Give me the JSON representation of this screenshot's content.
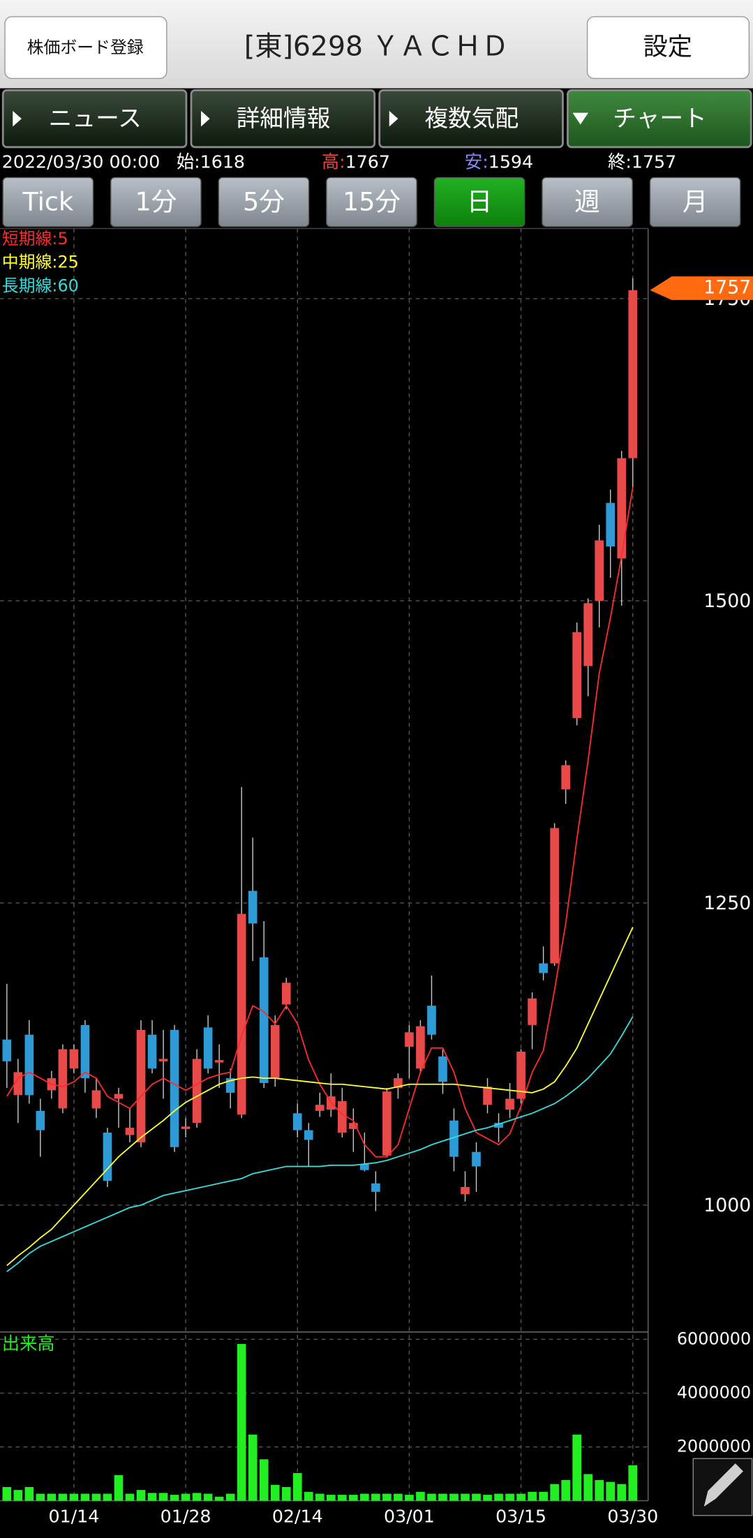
{
  "header": {
    "register_button": "株価ボード登録",
    "title": "[東]6298 ＹＡＣＨＤ",
    "settings_button": "設定"
  },
  "tabs": [
    "ニュース",
    "詳細情報",
    "複数気配",
    "チャート"
  ],
  "active_tab": 3,
  "info": {
    "datetime": "2022/03/30 00:00",
    "open_label": "始:",
    "high_label": "高:",
    "low_label": "安:",
    "close_label": "終:"
  },
  "periods": [
    "Tick",
    "1分",
    "5分",
    "15分",
    "日",
    "週",
    "月"
  ],
  "active_period": 4,
  "chart_data": {
    "type": "candlestick",
    "categories": [
      null,
      null,
      null,
      null,
      null,
      null,
      "01/14",
      null,
      null,
      null,
      null,
      null,
      null,
      null,
      null,
      null,
      "01/28",
      null,
      null,
      null,
      null,
      null,
      null,
      null,
      null,
      null,
      "02/14",
      null,
      null,
      null,
      null,
      null,
      null,
      null,
      null,
      null,
      "03/01",
      null,
      null,
      null,
      null,
      null,
      null,
      null,
      null,
      null,
      "03/15",
      null,
      null,
      null,
      null,
      null,
      null,
      null,
      null,
      null,
      "03/30"
    ],
    "open": [
      1137,
      1091,
      1141,
      1078,
      1095,
      1080,
      1113,
      1149,
      1080,
      1060,
      1088,
      1058,
      1052,
      1141,
      1119,
      1145,
      1063,
      1068,
      1147,
      1118,
      1105,
      1075,
      1260,
      1205,
      1105,
      1166,
      1076,
      1062,
      1078,
      1079,
      1060,
      1063,
      1034,
      1018,
      1041,
      1097,
      1131,
      1113,
      1165,
      1123,
      1070,
      1009,
      1044,
      1083,
      1068,
      1079,
      1088,
      1149,
      1200,
      1200,
      1344,
      1403,
      1446,
      1500,
      1581,
      1535,
      1618
    ],
    "high": [
      1183,
      1121,
      1153,
      1088,
      1111,
      1133,
      1133,
      1153,
      1105,
      1064,
      1097,
      1080,
      1153,
      1153,
      1145,
      1149,
      1072,
      1129,
      1157,
      1133,
      1113,
      1346,
      1304,
      1235,
      1157,
      1188,
      1084,
      1068,
      1093,
      1109,
      1097,
      1080,
      1060,
      1028,
      1097,
      1109,
      1149,
      1153,
      1190,
      1129,
      1080,
      1028,
      1052,
      1105,
      1076,
      1101,
      1129,
      1176,
      1214,
      1316,
      1368,
      1482,
      1502,
      1563,
      1592,
      1624,
      1767
    ],
    "low": [
      1097,
      1068,
      1084,
      1040,
      1088,
      1076,
      1109,
      1093,
      1072,
      1015,
      1064,
      1052,
      1048,
      1109,
      1088,
      1044,
      1056,
      1064,
      1109,
      1097,
      1080,
      1072,
      1202,
      1097,
      1098,
      1162,
      1056,
      1032,
      1073,
      1073,
      1056,
      1044,
      1028,
      995,
      1040,
      1088,
      1105,
      1109,
      1137,
      1092,
      1028,
      1003,
      1011,
      1076,
      1052,
      1072,
      1084,
      1129,
      1186,
      1198,
      1332,
      1397,
      1421,
      1478,
      1519,
      1496,
      1594
    ],
    "close": [
      1119,
      1110,
      1091,
      1062,
      1105,
      1129,
      1129,
      1105,
      1095,
      1020,
      1092,
      1064,
      1145,
      1113,
      1121,
      1048,
      1065,
      1121,
      1113,
      1120,
      1093,
      1241,
      1233,
      1101,
      1149,
      1184,
      1062,
      1054,
      1083,
      1090,
      1086,
      1068,
      1029,
      1011,
      1094,
      1105,
      1143,
      1148,
      1141,
      1102,
      1040,
      1015,
      1032,
      1098,
      1064,
      1088,
      1127,
      1171,
      1192,
      1312,
      1364,
      1474,
      1498,
      1550,
      1545,
      1618,
      1757
    ],
    "up_color": "#e84a4a",
    "down_color": "#2e9bd6",
    "wick_color": "#c8c8c8",
    "ylim": [
      895,
      1808
    ],
    "yticks": [
      1000,
      1250,
      1500,
      1750
    ],
    "grid": true,
    "series": [
      {
        "name": "短期線:5",
        "color": "#ff2a2a",
        "values": [
          1090,
          1105,
          1110,
          1105,
          1100,
          1098,
          1102,
          1110,
          1105,
          1090,
          1085,
          1080,
          1090,
          1100,
          1105,
          1100,
          1095,
          1100,
          1105,
          1108,
          1110,
          1140,
          1165,
          1160,
          1150,
          1165,
          1150,
          1120,
          1100,
          1085,
          1075,
          1070,
          1050,
          1040,
          1040,
          1050,
          1080,
          1110,
          1130,
          1130,
          1110,
          1080,
          1060,
          1055,
          1050,
          1059,
          1082,
          1110,
          1128,
          1178,
          1233,
          1303,
          1368,
          1440,
          1486,
          1537,
          1594
        ]
      },
      {
        "name": "中期線:25",
        "color": "#ffff33",
        "values": [
          950,
          958,
          965,
          973,
          980,
          990,
          1000,
          1010,
          1020,
          1030,
          1040,
          1048,
          1056,
          1063,
          1070,
          1078,
          1085,
          1090,
          1095,
          1100,
          1103,
          1105,
          1106,
          1105,
          1105,
          1104,
          1103,
          1102,
          1101,
          1100,
          1100,
          1099,
          1098,
          1097,
          1096,
          1098,
          1100,
          1100,
          1100,
          1100,
          1100,
          1099,
          1098,
          1097,
          1096,
          1095,
          1094,
          1093,
          1096,
          1102,
          1115,
          1130,
          1150,
          1170,
          1190,
          1210,
          1230
        ]
      },
      {
        "name": "長期線:60",
        "color": "#33dddd",
        "values": [
          945,
          952,
          960,
          966,
          970,
          974,
          978,
          982,
          986,
          990,
          994,
          998,
          1000,
          1004,
          1008,
          1010,
          1012,
          1014,
          1016,
          1018,
          1020,
          1022,
          1026,
          1028,
          1030,
          1032,
          1032,
          1032,
          1032,
          1033,
          1033,
          1033,
          1034,
          1035,
          1037,
          1040,
          1043,
          1046,
          1050,
          1053,
          1056,
          1059,
          1062,
          1064,
          1067,
          1070,
          1073,
          1076,
          1080,
          1084,
          1090,
          1097,
          1105,
          1115,
          1125,
          1140,
          1156
        ]
      }
    ],
    "volume": {
      "name": "出来高",
      "color": "#22ee22",
      "ylim": [
        0,
        6200000
      ],
      "yticks": [
        2000000,
        4000000,
        6000000
      ],
      "values": [
        510000,
        400000,
        510000,
        260000,
        260000,
        260000,
        260000,
        260000,
        260000,
        260000,
        950000,
        260000,
        400000,
        290000,
        290000,
        220000,
        260000,
        290000,
        260000,
        150000,
        260000,
        5830000,
        2460000,
        1540000,
        590000,
        510000,
        1030000,
        330000,
        260000,
        220000,
        220000,
        220000,
        260000,
        260000,
        260000,
        260000,
        220000,
        330000,
        260000,
        260000,
        260000,
        260000,
        260000,
        220000,
        260000,
        260000,
        260000,
        330000,
        330000,
        620000,
        770000,
        2460000,
        990000,
        770000,
        700000,
        620000,
        1320000
      ]
    }
  }
}
